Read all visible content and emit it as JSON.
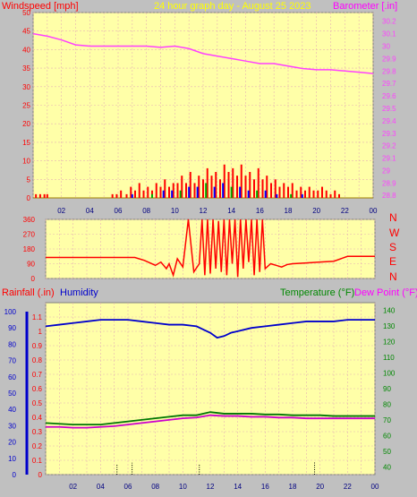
{
  "header": {
    "wind_label": "Windspeed [mph]",
    "title": "24 hour graph day - August 25 2023",
    "baro_label": "Barometer [.in]"
  },
  "bottom_labels": {
    "rain": "Rainfall (.in)",
    "humidity": "Humidity",
    "temperature": "Temperature (°F)",
    "dewpoint": "Dew Point (°F)"
  },
  "compass": [
    "N",
    "W",
    "S",
    "E",
    "N"
  ],
  "colors": {
    "background": "#c0c0c0",
    "plot_bg": "#ffffa8",
    "grid": "#e6b3b3",
    "wind": "#ff0000",
    "gust": "#0000ff",
    "wind_green": "#00aa00",
    "barometer": "#ff40ff",
    "direction": "#ff0000",
    "humidity": "#0000cc",
    "temperature": "#007700",
    "dewpoint": "#cc00cc",
    "title": "#ffff00",
    "rain_axis": "#0000cc",
    "temp_axis": "#008800"
  },
  "chart_data": [
    {
      "type": "bar",
      "title": "24 hour graph day - August 25 2023",
      "x_ticks": [
        "02",
        "04",
        "06",
        "08",
        "10",
        "12",
        "14",
        "16",
        "18",
        "20",
        "22",
        "00"
      ],
      "xlim": [
        0,
        24
      ],
      "y_left": {
        "label": "Windspeed [mph]",
        "ticks": [
          0,
          5,
          10,
          15,
          20,
          25,
          30,
          35,
          40,
          45,
          50
        ],
        "lim": [
          0,
          50
        ]
      },
      "y_right": {
        "label": "Barometer [.in]",
        "ticks": [
          28.8,
          28.9,
          29,
          29.1,
          29.2,
          29.3,
          29.4,
          29.5,
          29.6,
          29.7,
          29.8,
          29.9,
          30,
          30.1,
          30.2
        ],
        "lim": [
          28.78,
          30.27
        ]
      },
      "series": [
        {
          "name": "Windspeed [mph]",
          "type": "bar",
          "x": [
            0.2,
            0.5,
            0.8,
            1.0,
            5.6,
            5.9,
            6.2,
            6.6,
            6.9,
            7.2,
            7.5,
            7.8,
            8.1,
            8.4,
            8.7,
            9.0,
            9.3,
            9.6,
            9.9,
            10.2,
            10.5,
            10.8,
            11.1,
            11.4,
            11.7,
            12.0,
            12.3,
            12.6,
            12.9,
            13.2,
            13.5,
            13.8,
            14.1,
            14.4,
            14.7,
            15.0,
            15.3,
            15.6,
            15.9,
            16.2,
            16.5,
            16.8,
            17.1,
            17.4,
            17.7,
            18.0,
            18.3,
            18.6,
            18.9,
            19.2,
            19.5,
            19.8,
            20.1,
            20.4,
            20.7,
            21.0,
            21.3,
            21.6
          ],
          "values": [
            1,
            1,
            1,
            1,
            1,
            1,
            2,
            1,
            3,
            2,
            4,
            2,
            3,
            2,
            4,
            3,
            5,
            3,
            4,
            4,
            6,
            4,
            7,
            4,
            6,
            5,
            8,
            6,
            7,
            5,
            9,
            7,
            8,
            6,
            9,
            6,
            7,
            5,
            8,
            5,
            6,
            4,
            5,
            3,
            4,
            3,
            4,
            2,
            3,
            2,
            3,
            2,
            2,
            3,
            2,
            1,
            2,
            1
          ]
        },
        {
          "name": "Gust",
          "type": "bar",
          "x": [
            7.0,
            8.4,
            9.2,
            9.8,
            10.4,
            11.0,
            11.6,
            12.2,
            12.8,
            13.4,
            14.0,
            14.6,
            15.2,
            15.8,
            16.4,
            17.2,
            18.2,
            19.0
          ],
          "values": [
            1,
            1,
            2,
            2,
            2,
            3,
            3,
            4,
            3,
            4,
            3,
            3,
            2,
            2,
            2,
            1,
            1,
            1
          ]
        },
        {
          "name": "Barometer [.in]",
          "type": "line",
          "x": [
            0,
            1,
            2,
            3,
            4,
            5,
            6,
            7,
            8,
            9,
            10,
            11,
            12,
            13,
            14,
            15,
            16,
            17,
            18,
            19,
            20,
            21,
            22,
            23,
            24
          ],
          "values": [
            30.1,
            30.08,
            30.05,
            30.01,
            30.0,
            30.0,
            30.0,
            30.0,
            30.0,
            29.99,
            30.0,
            29.98,
            29.94,
            29.92,
            29.9,
            29.88,
            29.86,
            29.86,
            29.84,
            29.82,
            29.81,
            29.81,
            29.8,
            29.79,
            29.78
          ]
        }
      ]
    },
    {
      "type": "line",
      "x_ticks": [],
      "xlim": [
        0,
        24
      ],
      "y_left": {
        "label": "",
        "ticks": [
          0,
          90,
          180,
          270,
          360
        ],
        "lim": [
          0,
          360
        ]
      },
      "y_right_labels": [
        "N",
        "W",
        "S",
        "E",
        "N"
      ],
      "series": [
        {
          "name": "Wind direction",
          "type": "line",
          "x": [
            0,
            5,
            6.5,
            7.2,
            7.6,
            8.0,
            8.4,
            8.8,
            9.0,
            9.3,
            9.6,
            10.0,
            10.4,
            10.8,
            11.2,
            11.4,
            11.6,
            11.8,
            12.0,
            12.2,
            12.4,
            12.6,
            12.8,
            13.0,
            13.2,
            13.4,
            13.6,
            13.8,
            14.0,
            14.2,
            14.4,
            14.6,
            14.8,
            15.0,
            15.2,
            15.4,
            15.6,
            15.8,
            16.0,
            16.4,
            16.8,
            17.2,
            17.6,
            18,
            19,
            20,
            21,
            22,
            24
          ],
          "values": [
            128,
            128,
            128,
            110,
            95,
            80,
            100,
            60,
            90,
            20,
            120,
            70,
            360,
            40,
            90,
            360,
            20,
            360,
            30,
            360,
            60,
            350,
            40,
            360,
            20,
            360,
            90,
            360,
            10,
            360,
            60,
            360,
            100,
            360,
            20,
            360,
            40,
            360,
            60,
            90,
            80,
            70,
            85,
            90,
            95,
            100,
            105,
            135,
            135
          ]
        }
      ]
    },
    {
      "type": "line",
      "x_ticks": [
        "02",
        "04",
        "06",
        "08",
        "10",
        "12",
        "14",
        "16",
        "18",
        "20",
        "22",
        "00"
      ],
      "xlim": [
        0,
        24
      ],
      "y_left_rain": {
        "label": "Rainfall (.in)",
        "ticks": [
          0,
          0.1,
          0.2,
          0.3,
          0.4,
          0.5,
          0.6,
          0.7,
          0.8,
          0.9,
          1,
          1.1
        ],
        "lim": [
          0,
          1.2
        ]
      },
      "y_left_humidity": {
        "label": "Humidity",
        "ticks": [
          0,
          10,
          20,
          30,
          40,
          50,
          60,
          70,
          80,
          90,
          100
        ],
        "lim": [
          0,
          100
        ]
      },
      "y_right": {
        "label": "Temperature (°F)",
        "ticks": [
          40,
          50,
          60,
          70,
          80,
          90,
          100,
          110,
          120,
          130,
          140
        ],
        "lim": [
          35,
          145
        ]
      },
      "series": [
        {
          "name": "Humidity",
          "type": "line",
          "x": [
            0,
            1,
            2,
            3,
            4,
            5,
            6,
            7,
            8,
            9,
            10,
            11,
            11.5,
            12,
            12.5,
            13,
            13.5,
            14,
            15,
            16,
            17,
            18,
            19,
            20,
            21,
            22,
            23,
            24
          ],
          "values": [
            91,
            92,
            93,
            94,
            95,
            95,
            95,
            94,
            93,
            92,
            92,
            91,
            89,
            87,
            84,
            85,
            87,
            88,
            90,
            91,
            92,
            93,
            94,
            94,
            94,
            95,
            95,
            95
          ]
        },
        {
          "name": "Temperature (°F)",
          "type": "line",
          "x": [
            0,
            1,
            2,
            3,
            4,
            5,
            6,
            7,
            8,
            9,
            10,
            11,
            12,
            13,
            14,
            15,
            16,
            17,
            18,
            19,
            20,
            21,
            22,
            23,
            24
          ],
          "values": [
            68,
            67.5,
            67,
            67,
            67,
            68,
            69,
            70,
            71,
            72,
            73,
            73,
            75,
            74,
            74,
            74,
            73.5,
            73.5,
            73,
            73,
            73,
            72.5,
            72.5,
            72.5,
            72.5
          ]
        },
        {
          "name": "Dew Point (°F)",
          "type": "line",
          "x": [
            0,
            1,
            2,
            3,
            4,
            5,
            6,
            7,
            8,
            9,
            10,
            11,
            12,
            13,
            14,
            15,
            16,
            17,
            18,
            19,
            20,
            21,
            22,
            23,
            24
          ],
          "values": [
            65.5,
            65.5,
            65,
            65,
            65.5,
            66,
            67,
            68,
            69,
            70,
            71,
            71.5,
            73,
            72.5,
            72.5,
            72,
            72,
            71.5,
            71.5,
            71,
            71,
            71,
            71,
            71,
            71
          ]
        },
        {
          "name": "Rainfall (.in)",
          "type": "bar",
          "x": [
            5.2,
            6.3,
            11.2,
            19.6
          ],
          "values": [
            0.01,
            0.02,
            0.01,
            0.03
          ]
        }
      ]
    }
  ]
}
